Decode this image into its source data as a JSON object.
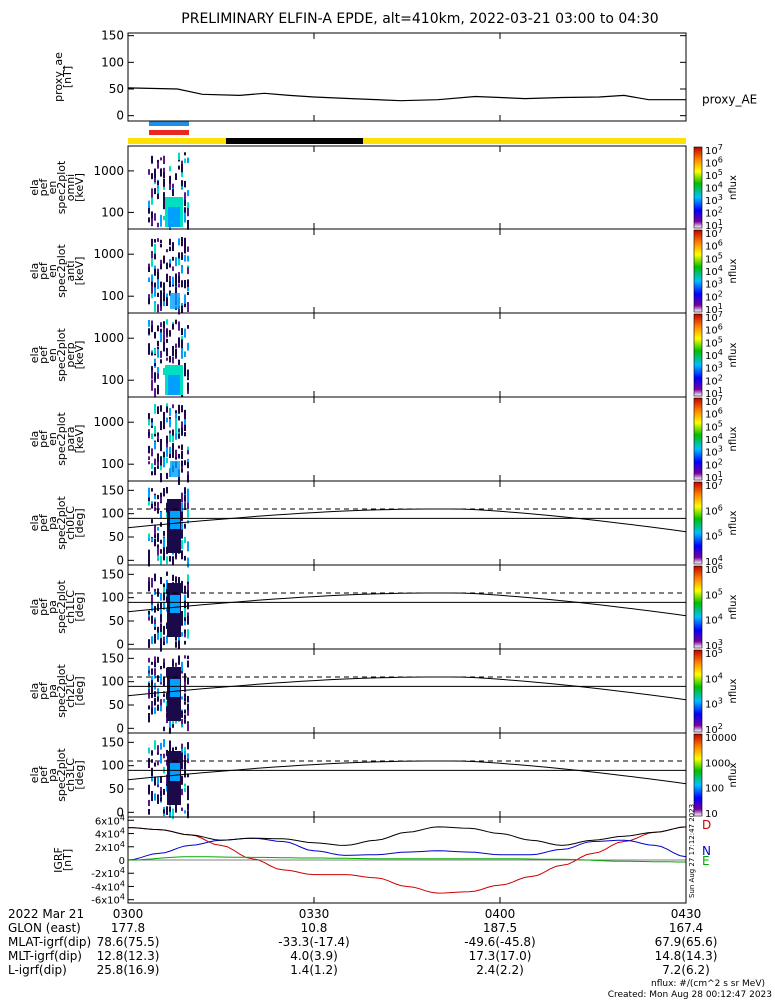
{
  "title": "PRELIMINARY ELFIN-A EPDE, alt=410km, 2022-03-21 03:00 to 04:30",
  "colors": {
    "status_yellow": "#ffe000",
    "status_black": "#000000",
    "bar_blue": "#1e8ee8",
    "bar_red": "#e8281e",
    "spec_low": "#1a0a4a",
    "spec_mid": "#00a0ff",
    "spec_high": "#00e0c0",
    "grf_d": "#cc0000",
    "grf_n": "#0000cc",
    "grf_e": "#00aa00",
    "grf_total": "#000000"
  },
  "chart_data": [
    {
      "id": "proxy_ae",
      "type": "line",
      "ylabel_lines": [
        "proxy_ae",
        "[nT]"
      ],
      "yticks": [
        "0",
        "50",
        "100",
        "150"
      ],
      "ylim": [
        -10,
        155
      ],
      "side_label": "proxy_AE",
      "x": [
        0,
        8,
        12,
        18,
        22,
        26,
        30,
        36,
        44,
        50,
        56,
        60,
        64,
        70,
        76,
        80,
        84,
        90
      ],
      "y": [
        52,
        50,
        40,
        38,
        42,
        38,
        35,
        32,
        28,
        30,
        36,
        34,
        32,
        34,
        35,
        38,
        30,
        30
      ]
    },
    {
      "id": "omni",
      "type": "heatmap",
      "ylabel_lines": [
        "ela",
        "pef",
        "en",
        "spec2plot",
        "omni",
        "[keV]"
      ],
      "yticks": [
        "100",
        "1000"
      ],
      "cb_label": "nflux",
      "cb_ticks": [
        "10^1",
        "10^2",
        "10^3",
        "10^4",
        "10^5",
        "10^6",
        "10^7"
      ]
    },
    {
      "id": "anti",
      "type": "heatmap",
      "ylabel_lines": [
        "ela",
        "pef",
        "en",
        "spec2plot",
        "anti",
        "[keV]"
      ],
      "yticks": [
        "100",
        "1000"
      ],
      "cb_label": "nflux",
      "cb_ticks": [
        "10^1",
        "10^2",
        "10^3",
        "10^4",
        "10^5",
        "10^6",
        "10^7"
      ]
    },
    {
      "id": "perp",
      "type": "heatmap",
      "ylabel_lines": [
        "ela",
        "pef",
        "en",
        "spec2plot",
        "perp",
        "[keV]"
      ],
      "yticks": [
        "100",
        "1000"
      ],
      "cb_label": "nflux",
      "cb_ticks": [
        "10^1",
        "10^2",
        "10^3",
        "10^4",
        "10^5",
        "10^6",
        "10^7"
      ]
    },
    {
      "id": "para",
      "type": "heatmap",
      "ylabel_lines": [
        "ela",
        "pef",
        "en",
        "spec2plot",
        "para",
        "[keV]"
      ],
      "yticks": [
        "100",
        "1000"
      ],
      "cb_label": "nflux",
      "cb_ticks": [
        "10^1",
        "10^2",
        "10^3",
        "10^4",
        "10^5",
        "10^6",
        "10^7"
      ]
    },
    {
      "id": "ch0",
      "type": "heatmap",
      "ylabel_lines": [
        "ela",
        "pef",
        "pa",
        "spec2plot",
        "ch0LC",
        "[deg]"
      ],
      "yticks": [
        "0",
        "50",
        "100",
        "150"
      ],
      "cb_label": "nflux",
      "cb_ticks": [
        "10^4",
        "10^5",
        "10^6",
        "10^7"
      ]
    },
    {
      "id": "ch1",
      "type": "heatmap",
      "ylabel_lines": [
        "ela",
        "pef",
        "pa",
        "spec2plot",
        "ch1LC",
        "[deg]"
      ],
      "yticks": [
        "0",
        "50",
        "100",
        "150"
      ],
      "cb_label": "nflux",
      "cb_ticks": [
        "10^3",
        "10^4",
        "10^5",
        "10^6"
      ]
    },
    {
      "id": "ch2",
      "type": "heatmap",
      "ylabel_lines": [
        "ela",
        "pef",
        "pa",
        "spec2plot",
        "ch2LC",
        "[deg]"
      ],
      "yticks": [
        "0",
        "50",
        "100",
        "150"
      ],
      "cb_label": "nflux",
      "cb_ticks": [
        "10^2",
        "10^3",
        "10^4",
        "10^5"
      ]
    },
    {
      "id": "ch3",
      "type": "heatmap",
      "ylabel_lines": [
        "ela",
        "pef",
        "pa",
        "spec2plot",
        "ch3LC",
        "[deg]"
      ],
      "yticks": [
        "0",
        "50",
        "100",
        "150"
      ],
      "cb_label": "nflux",
      "cb_ticks": [
        "10",
        "100",
        "1000",
        "10000"
      ]
    },
    {
      "id": "igrf",
      "type": "line",
      "ylabel_lines": [
        "IGRF",
        "[nT]"
      ],
      "yticks": [
        "-6x10^4",
        "-4x10^4",
        "-2x10^4",
        "0",
        "2x10^4",
        "4x10^4",
        "6x10^4"
      ],
      "ylim": [
        -65000,
        65000
      ],
      "legend": [
        "D",
        "N",
        "E"
      ],
      "series": [
        {
          "name": "D",
          "color": "#cc0000",
          "x": [
            0,
            5,
            10,
            15,
            20,
            25,
            30,
            35,
            40,
            45,
            50,
            55,
            60,
            65,
            70,
            75,
            80,
            85,
            90
          ],
          "y": [
            49000,
            46000,
            38000,
            22000,
            2000,
            -15000,
            -22000,
            -22000,
            -27000,
            -40000,
            -50000,
            -48000,
            -38000,
            -25000,
            -8000,
            10000,
            28000,
            42000,
            50000
          ]
        },
        {
          "name": "N",
          "color": "#0000cc",
          "x": [
            0,
            5,
            10,
            15,
            20,
            25,
            30,
            35,
            40,
            45,
            50,
            55,
            60,
            65,
            70,
            75,
            80,
            85,
            90
          ],
          "y": [
            0,
            10000,
            22000,
            30000,
            33000,
            28000,
            14000,
            7000,
            8000,
            12000,
            14000,
            12000,
            8000,
            8000,
            16000,
            28000,
            30000,
            22000,
            5000
          ]
        },
        {
          "name": "E",
          "color": "#00aa00",
          "x": [
            0,
            10,
            20,
            30,
            40,
            50,
            60,
            70,
            80,
            90
          ],
          "y": [
            0,
            5000,
            4000,
            3000,
            2000,
            2000,
            2000,
            1000,
            -2000,
            -3000
          ]
        },
        {
          "name": "total",
          "color": "#000000",
          "x": [
            0,
            5,
            10,
            15,
            20,
            25,
            30,
            35,
            40,
            45,
            50,
            55,
            60,
            65,
            70,
            75,
            80,
            85,
            90
          ],
          "y": [
            49000,
            46000,
            38000,
            30000,
            33000,
            32000,
            26000,
            22000,
            30000,
            42000,
            50000,
            48000,
            40000,
            30000,
            22000,
            30000,
            36000,
            42000,
            50000
          ]
        }
      ]
    }
  ],
  "time_axis": {
    "label_row": "2022 Mar 21",
    "ticks": [
      "0300",
      "0330",
      "0400",
      "0430"
    ]
  },
  "ephemeris": [
    {
      "label": "GLON (east)",
      "values": [
        "177.8",
        "10.8",
        "187.5",
        "167.4"
      ]
    },
    {
      "label": "MLAT-igrf(dip)",
      "values": [
        "78.6(75.5)",
        "-33.3(-17.4)",
        "-49.6(-45.8)",
        "67.9(65.6)"
      ]
    },
    {
      "label": "MLT-igrf(dip)",
      "values": [
        "12.8(12.3)",
        "4.0(3.9)",
        "17.3(17.0)",
        "14.8(14.3)"
      ]
    },
    {
      "label": "L-igrf(dip)",
      "values": [
        "25.8(16.9)",
        "1.4(1.2)",
        "2.4(2.2)",
        "7.2(6.2)"
      ]
    }
  ],
  "footer": {
    "units": "nflux: #/(cm^2 s sr MeV)",
    "created": "Created: Mon Aug 28 00:12:47 2023",
    "side_stamp": "Sun Aug 27 17:12:47 2023"
  }
}
